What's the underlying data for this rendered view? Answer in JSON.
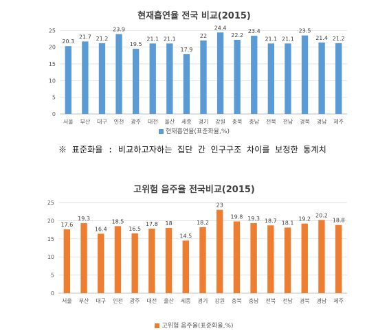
{
  "colors": {
    "blue": "#5b9bd5",
    "orange": "#ed7d31",
    "axis": "#bfbfbf",
    "grid": "#d9d9d9"
  },
  "note": "※ 표준화율 : 비교하고자하는 집단 간 인구구조 차이를 보정한 통계치",
  "chart_data": [
    {
      "type": "bar",
      "title": "현재흡연율 전국 비교(2015)",
      "categories": [
        "서울",
        "부산",
        "대구",
        "인천",
        "광주",
        "대전",
        "울산",
        "세종",
        "경기",
        "강원",
        "충북",
        "충남",
        "전북",
        "전남",
        "경북",
        "경남",
        "제주"
      ],
      "series": [
        {
          "name": "현재흡연율(표준화율,%)",
          "values": [
            20.3,
            21.7,
            21.2,
            23.9,
            19.5,
            21.1,
            21.1,
            17.9,
            22,
            24.4,
            22.2,
            23.4,
            21.1,
            21.1,
            23.5,
            21.4,
            21.2
          ]
        }
      ],
      "ylim": [
        0,
        30
      ],
      "yticks": [
        "0",
        "5",
        "10",
        "15",
        "20",
        "25"
      ],
      "grid": true,
      "legend": "bottom",
      "color": "#5b9bd5"
    },
    {
      "type": "bar",
      "title": "고위험 음주율 전국비교(2015)",
      "categories": [
        "서울",
        "부산",
        "대구",
        "인천",
        "광주",
        "대전",
        "울산",
        "세종",
        "경기",
        "강원",
        "충북",
        "충남",
        "전북",
        "전남",
        "경북",
        "경남",
        "제주"
      ],
      "series": [
        {
          "name": "고위험 음주율(표준화율,%)",
          "values": [
            17.6,
            19.3,
            16.4,
            18.5,
            16.5,
            17.8,
            18,
            14.5,
            18.2,
            23,
            19.8,
            19.3,
            18.7,
            18.1,
            19.2,
            20.2,
            18.8
          ]
        }
      ],
      "ylim": [
        0,
        25
      ],
      "yticks": [
        "0",
        "5",
        "10",
        "15",
        "20",
        "25"
      ],
      "grid": true,
      "legend": "bottom",
      "color": "#ed7d31"
    }
  ]
}
